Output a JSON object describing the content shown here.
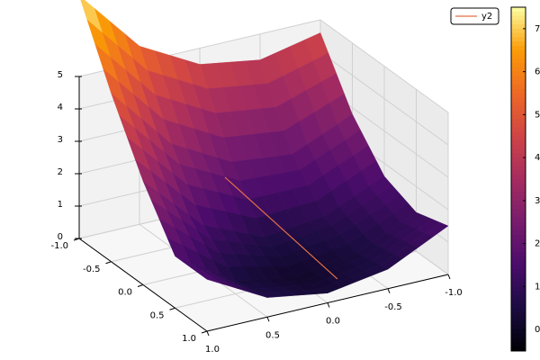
{
  "chart_data": {
    "type": "surface",
    "x": [
      -1,
      -0.5,
      0,
      0.5,
      1
    ],
    "y": [
      -1,
      -0.5,
      0,
      0.5,
      1
    ],
    "z": [
      [
        4.6,
        4.2,
        4.5,
        5.5,
        7.5
      ],
      [
        2.8,
        2.0,
        2.2,
        3.2,
        5.2
      ],
      [
        1.6,
        0.8,
        0.6,
        1.4,
        3.2
      ],
      [
        1.2,
        0.4,
        0.1,
        0.4,
        1.6
      ],
      [
        1.5,
        0.6,
        0.3,
        0.6,
        1.6
      ]
    ],
    "xlim": [
      -1,
      1
    ],
    "ylim": [
      -1,
      1
    ],
    "zlim": [
      0,
      5
    ],
    "xticks": [
      {
        "value": -1,
        "label": "-1.0"
      },
      -0.5,
      {
        "value": 0,
        "label": "0.0"
      },
      0.5,
      {
        "value": 1,
        "label": "1.0"
      }
    ],
    "yticks": [
      {
        "value": -1,
        "label": "-1.0"
      },
      -0.5,
      {
        "value": 0,
        "label": "0.0"
      },
      0.5,
      {
        "value": 1,
        "label": "1.0"
      }
    ],
    "zticks": [
      0,
      1,
      2,
      3,
      4,
      5
    ],
    "colormap": "inferno",
    "clim": [
      -0.5,
      7.5
    ],
    "colorbar_ticks": [
      0,
      1,
      2,
      3,
      4,
      5,
      6,
      7
    ],
    "grid": true,
    "legend": "top right",
    "series": [
      {
        "name": "y2",
        "color": "#e26f46",
        "x": [
          -0.7,
          0.7
        ],
        "y": [
          -0.05,
          -0.24
        ],
        "z": [
          1.4,
          0.1
        ]
      }
    ]
  }
}
